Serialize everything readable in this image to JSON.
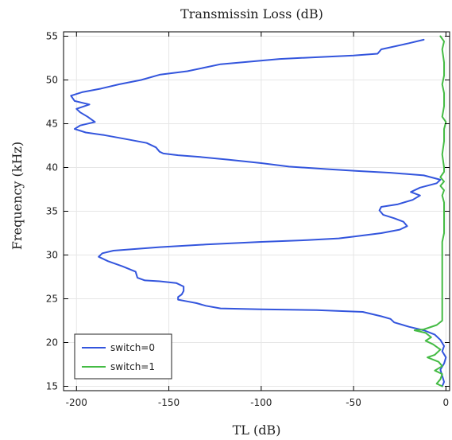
{
  "chart_data": {
    "type": "line",
    "title": "Transmissin Loss  (dB)",
    "xlabel": "TL  (dB)",
    "ylabel": "Frequency (kHz)",
    "xlim": [
      -207,
      2
    ],
    "ylim": [
      14.5,
      55.5
    ],
    "grid": true,
    "legend_position": "bottom-left",
    "x_ticks": [
      -200,
      -150,
      -100,
      -50,
      0
    ],
    "x_tick_labels": [
      "-200",
      "-150",
      "-100",
      "-50",
      "0"
    ],
    "y_ticks": [
      15,
      20,
      25,
      30,
      35,
      40,
      45,
      50,
      55
    ],
    "y_tick_labels": [
      "15",
      "20",
      "25",
      "30",
      "35",
      "40",
      "45",
      "50",
      "55"
    ],
    "series": [
      {
        "name": "switch=0",
        "color": "#3355dd",
        "points": [
          [
            -12,
            54.6
          ],
          [
            -20,
            54.2
          ],
          [
            -35,
            53.5
          ],
          [
            -37,
            53
          ],
          [
            -50,
            52.8
          ],
          [
            -90,
            52.4
          ],
          [
            -122,
            51.8
          ],
          [
            -140,
            51
          ],
          [
            -155,
            50.6
          ],
          [
            -165,
            50
          ],
          [
            -177,
            49.5
          ],
          [
            -187,
            49
          ],
          [
            -197,
            48.6
          ],
          [
            -203,
            48.2
          ],
          [
            -201,
            47.6
          ],
          [
            -193,
            47.2
          ],
          [
            -200,
            46.7
          ],
          [
            -198,
            46.3
          ],
          [
            -194,
            45.8
          ],
          [
            -190,
            45.2
          ],
          [
            -198,
            44.8
          ],
          [
            -201,
            44.4
          ],
          [
            -195,
            44
          ],
          [
            -185,
            43.7
          ],
          [
            -172,
            43.2
          ],
          [
            -162,
            42.8
          ],
          [
            -157,
            42.3
          ],
          [
            -155,
            41.8
          ],
          [
            -153,
            41.6
          ],
          [
            -145,
            41.4
          ],
          [
            -133,
            41.2
          ],
          [
            -118,
            40.9
          ],
          [
            -100,
            40.5
          ],
          [
            -85,
            40.1
          ],
          [
            -63,
            39.8
          ],
          [
            -48,
            39.6
          ],
          [
            -30,
            39.4
          ],
          [
            -12,
            39.1
          ],
          [
            -3,
            38.6
          ],
          [
            -5,
            38.2
          ],
          [
            -14,
            37.7
          ],
          [
            -19,
            37.2
          ],
          [
            -14,
            36.8
          ],
          [
            -18,
            36.3
          ],
          [
            -26,
            35.8
          ],
          [
            -35,
            35.5
          ],
          [
            -36,
            35.1
          ],
          [
            -34,
            34.6
          ],
          [
            -28,
            34.2
          ],
          [
            -23,
            33.8
          ],
          [
            -21,
            33.3
          ],
          [
            -25,
            32.9
          ],
          [
            -35,
            32.5
          ],
          [
            -50,
            32.1
          ],
          [
            -58,
            31.9
          ],
          [
            -75,
            31.7
          ],
          [
            -100,
            31.5
          ],
          [
            -130,
            31.2
          ],
          [
            -155,
            30.9
          ],
          [
            -180,
            30.5
          ],
          [
            -186,
            30.2
          ],
          [
            -188,
            29.8
          ],
          [
            -183,
            29.3
          ],
          [
            -175,
            28.7
          ],
          [
            -168,
            28.1
          ],
          [
            -167,
            27.4
          ],
          [
            -163,
            27.1
          ],
          [
            -155,
            27
          ],
          [
            -146,
            26.8
          ],
          [
            -142,
            26.4
          ],
          [
            -142,
            25.9
          ],
          [
            -143,
            25.5
          ],
          [
            -145,
            25.2
          ],
          [
            -145,
            24.9
          ],
          [
            -140,
            24.7
          ],
          [
            -135,
            24.5
          ],
          [
            -130,
            24.2
          ],
          [
            -122,
            23.9
          ],
          [
            -100,
            23.8
          ],
          [
            -70,
            23.7
          ],
          [
            -45,
            23.5
          ],
          [
            -35,
            23
          ],
          [
            -30,
            22.7
          ],
          [
            -28,
            22.3
          ],
          [
            -20,
            21.8
          ],
          [
            -12,
            21.4
          ],
          [
            -6,
            20.9
          ],
          [
            -3,
            20.3
          ],
          [
            -1,
            19.6
          ],
          [
            -2,
            19
          ],
          [
            0,
            18.3
          ],
          [
            -1,
            17.6
          ],
          [
            -3,
            16.9
          ],
          [
            -2,
            16.2
          ],
          [
            -1,
            15.5
          ],
          [
            -2,
            15
          ]
        ]
      },
      {
        "name": "switch=1",
        "color": "#44bb44",
        "points": [
          [
            -3,
            55
          ],
          [
            -1,
            54.4
          ],
          [
            -2,
            53.5
          ],
          [
            -1,
            52
          ],
          [
            -1,
            50.5
          ],
          [
            -2,
            49.5
          ],
          [
            -1,
            48.5
          ],
          [
            -1,
            47
          ],
          [
            -2,
            45.8
          ],
          [
            0,
            45.2
          ],
          [
            -1,
            44.4
          ],
          [
            -1,
            43
          ],
          [
            -2,
            41.5
          ],
          [
            -1,
            40
          ],
          [
            -1,
            39.5
          ],
          [
            -3,
            38.9
          ],
          [
            -1,
            38.4
          ],
          [
            -3,
            37.9
          ],
          [
            -1,
            37.4
          ],
          [
            -2,
            36.8
          ],
          [
            -1,
            36
          ],
          [
            -1,
            34.5
          ],
          [
            -1,
            32.5
          ],
          [
            -2,
            31.5
          ],
          [
            -2,
            30
          ],
          [
            -2,
            28
          ],
          [
            -2,
            26
          ],
          [
            -2,
            24
          ],
          [
            -2,
            22.5
          ],
          [
            -5,
            22
          ],
          [
            -12,
            21.5
          ],
          [
            -17,
            21.4
          ],
          [
            -11,
            21.1
          ],
          [
            -8,
            20.6
          ],
          [
            -11,
            20.2
          ],
          [
            -7,
            19.8
          ],
          [
            -3,
            19.2
          ],
          [
            -6,
            18.6
          ],
          [
            -10,
            18.3
          ],
          [
            -4,
            17.8
          ],
          [
            -2,
            17.3
          ],
          [
            -6,
            16.8
          ],
          [
            -2,
            16.4
          ],
          [
            -3,
            15.8
          ],
          [
            -5,
            15.3
          ],
          [
            -2,
            15
          ]
        ]
      }
    ]
  }
}
